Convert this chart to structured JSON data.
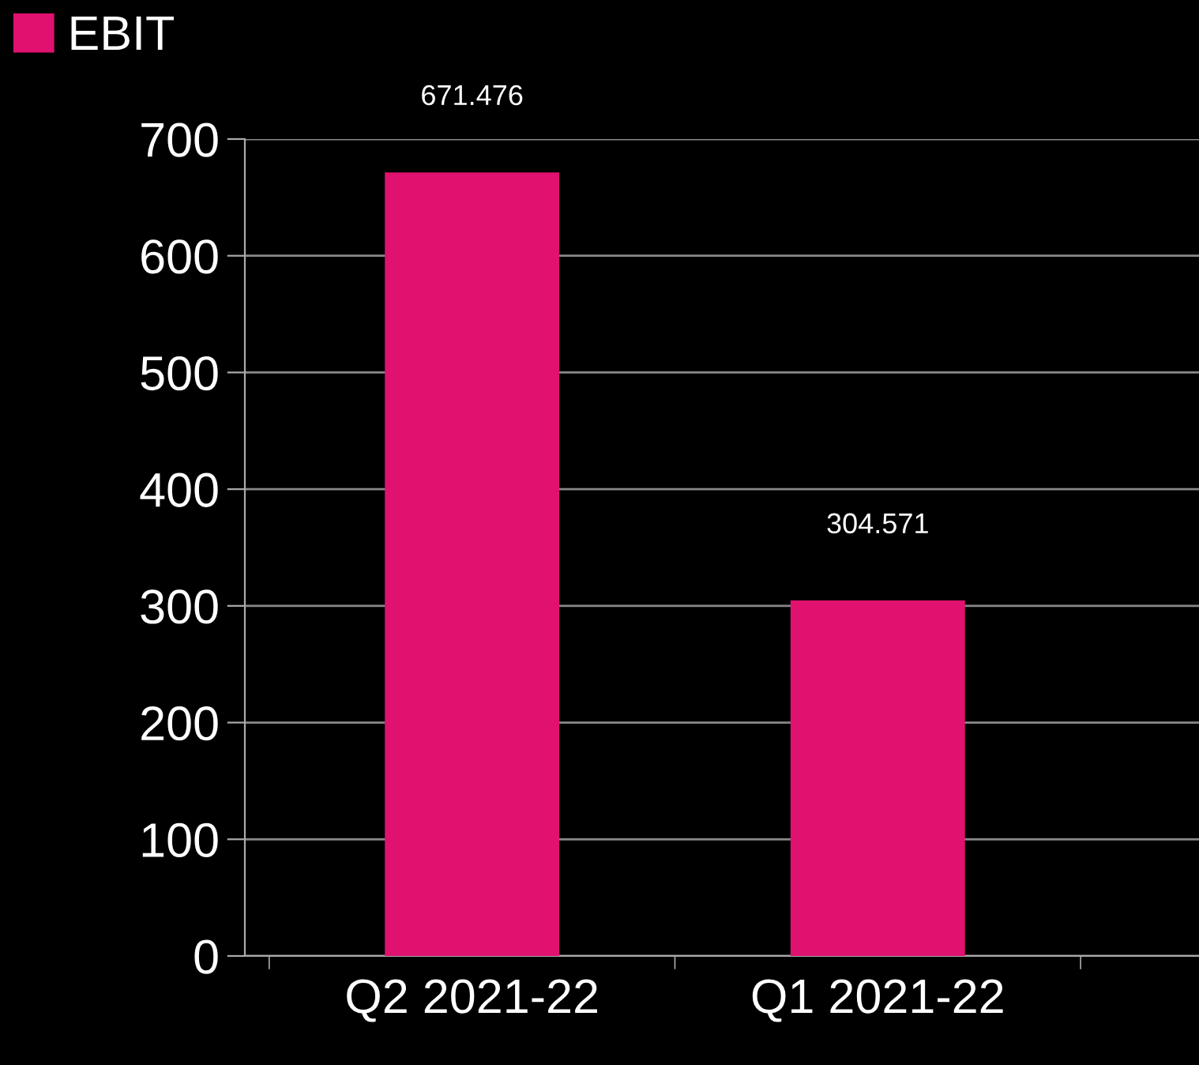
{
  "chart_data": {
    "type": "bar",
    "categories": [
      "Q2 2021-22",
      "Q1 2021-22"
    ],
    "series": [
      {
        "name": "EBIT",
        "color": "#e0116f",
        "values": [
          671.476,
          304.571
        ]
      }
    ],
    "ylim": [
      0,
      700
    ],
    "yticks": [
      0,
      100,
      200,
      300,
      400,
      500,
      600,
      700
    ],
    "grid": "y",
    "legend": "top left",
    "data_labels": true
  }
}
